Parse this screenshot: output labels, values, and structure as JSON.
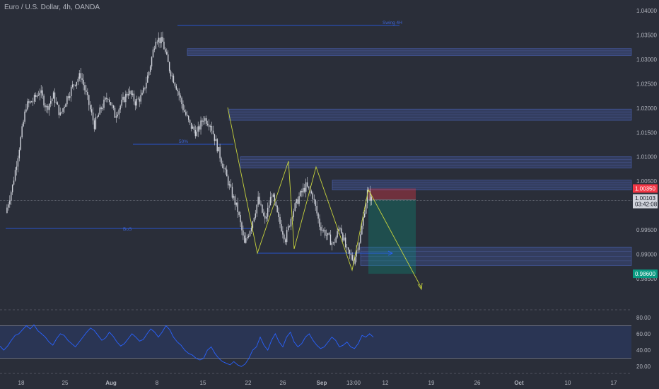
{
  "header": {
    "title": "Euro / U.S. Dollar, 4h, OANDA"
  },
  "colors": {
    "background": "#2a2e39",
    "candle": "#d1d4dc",
    "zone": "#3d4f8f",
    "line_blue": "#2962ff",
    "pattern": "#c7d33c",
    "stop": "#f23645",
    "target": "#089981",
    "rsi": "#2962ff",
    "text": "#b2b5be"
  },
  "chart_data": [
    {
      "type": "candlestick",
      "title": "Euro / U.S. Dollar, 4h, OANDA",
      "y_ticks": [
        "0.98500",
        "0.99000",
        "0.99500",
        "1.00000",
        "1.00500",
        "1.01000",
        "1.01500",
        "1.02000",
        "1.02500",
        "1.03000",
        "1.03500",
        "1.04000"
      ],
      "x_ticks": [
        "18",
        "25",
        "Aug",
        "8",
        "15",
        "22",
        "26",
        "Sep",
        "13:00",
        "12",
        "19",
        "26",
        "Oct",
        "10",
        "17"
      ],
      "ylim": [
        0.982,
        1.041
      ],
      "close_path": [
        {
          "t": 0.0,
          "v": 0.9985
        },
        {
          "t": 1.5,
          "v": 1.004
        },
        {
          "t": 3.0,
          "v": 1.012
        },
        {
          "t": 4.5,
          "v": 1.0205
        },
        {
          "t": 6.0,
          "v": 1.0215
        },
        {
          "t": 7.5,
          "v": 1.0235
        },
        {
          "t": 9.0,
          "v": 1.02
        },
        {
          "t": 10.5,
          "v": 1.0225
        },
        {
          "t": 12.0,
          "v": 1.0185
        },
        {
          "t": 13.5,
          "v": 1.0222
        },
        {
          "t": 15.0,
          "v": 1.025
        },
        {
          "t": 16.5,
          "v": 1.0268
        },
        {
          "t": 18.0,
          "v": 1.0218
        },
        {
          "t": 19.5,
          "v": 1.0165
        },
        {
          "t": 21.0,
          "v": 1.02
        },
        {
          "t": 22.5,
          "v": 1.0225
        },
        {
          "t": 24.0,
          "v": 1.0185
        },
        {
          "t": 25.5,
          "v": 1.021
        },
        {
          "t": 27.0,
          "v": 1.0235
        },
        {
          "t": 28.5,
          "v": 1.0212
        },
        {
          "t": 30.0,
          "v": 1.0225
        },
        {
          "t": 31.5,
          "v": 1.0275
        },
        {
          "t": 33.0,
          "v": 1.0345
        },
        {
          "t": 34.5,
          "v": 1.0335
        },
        {
          "t": 36.0,
          "v": 1.028
        },
        {
          "t": 37.5,
          "v": 1.0245
        },
        {
          "t": 39.0,
          "v": 1.02
        },
        {
          "t": 40.5,
          "v": 1.0165
        },
        {
          "t": 42.0,
          "v": 1.0148
        },
        {
          "t": 43.5,
          "v": 1.018
        },
        {
          "t": 45.0,
          "v": 1.0168
        },
        {
          "t": 46.5,
          "v": 1.012
        },
        {
          "t": 48.0,
          "v": 1.0075
        },
        {
          "t": 49.5,
          "v": 1.003
        },
        {
          "t": 51.0,
          "v": 0.999
        },
        {
          "t": 52.5,
          "v": 0.992
        },
        {
          "t": 54.0,
          "v": 0.996
        },
        {
          "t": 55.5,
          "v": 1.0012
        },
        {
          "t": 57.0,
          "v": 0.9968
        },
        {
          "t": 58.5,
          "v": 1.0025
        },
        {
          "t": 60.0,
          "v": 0.997
        },
        {
          "t": 61.5,
          "v": 0.9932
        },
        {
          "t": 63.0,
          "v": 0.9985
        },
        {
          "t": 64.5,
          "v": 1.0018
        },
        {
          "t": 66.0,
          "v": 1.004
        },
        {
          "t": 67.5,
          "v": 1.002
        },
        {
          "t": 69.0,
          "v": 0.996
        },
        {
          "t": 70.5,
          "v": 0.994
        },
        {
          "t": 72.0,
          "v": 0.992
        },
        {
          "t": 73.5,
          "v": 0.9958
        },
        {
          "t": 75.0,
          "v": 0.9905
        },
        {
          "t": 76.5,
          "v": 0.9888
        },
        {
          "t": 78.0,
          "v": 0.9938
        },
        {
          "t": 79.5,
          "v": 1.0028
        },
        {
          "t": 80.5,
          "v": 1.001
        }
      ],
      "levels": {
        "current_price": "1.00103",
        "countdown": "03:42:08",
        "stop_loss": "1.00350",
        "take_profit": "0.98600"
      },
      "zones": [
        {
          "from": 1.0308,
          "to": 1.0322
        },
        {
          "from": 1.0175,
          "to": 1.0198
        },
        {
          "from": 1.0077,
          "to": 1.01
        },
        {
          "from": 1.0032,
          "to": 1.0052
        },
        {
          "from": 0.9877,
          "to": 0.9915
        }
      ],
      "annotations": {
        "top_line_label": "Swing 4H",
        "mid_line_label": "50%",
        "bos_label": "BoS"
      }
    },
    {
      "type": "line",
      "title": "",
      "y_ticks": [
        "20.00",
        "40.00",
        "60.00",
        "80.00"
      ],
      "ylim": [
        15,
        85
      ],
      "upper_band": 70,
      "lower_band": 30,
      "series": [
        {
          "values": [
            45,
            40,
            45,
            52,
            58,
            60,
            65,
            70,
            66,
            71,
            64,
            60,
            56,
            50,
            46,
            54,
            60,
            58,
            52,
            48,
            44,
            50,
            56,
            62,
            67,
            64,
            58,
            52,
            55,
            62,
            57,
            50,
            45,
            48,
            54,
            60,
            56,
            51,
            53,
            60,
            66,
            62,
            56,
            62,
            70,
            65,
            56,
            50,
            46,
            40,
            36,
            34,
            30,
            28,
            30,
            40,
            44,
            36,
            30,
            26,
            24,
            22,
            26,
            22,
            20,
            23,
            30,
            40,
            44,
            56,
            46,
            40,
            52,
            60,
            50,
            44,
            56,
            62,
            50,
            44,
            48,
            56,
            60,
            52,
            46,
            42,
            44,
            50,
            56,
            52,
            44,
            46,
            50,
            44,
            42,
            48,
            58,
            56,
            60,
            56
          ]
        }
      ]
    }
  ]
}
